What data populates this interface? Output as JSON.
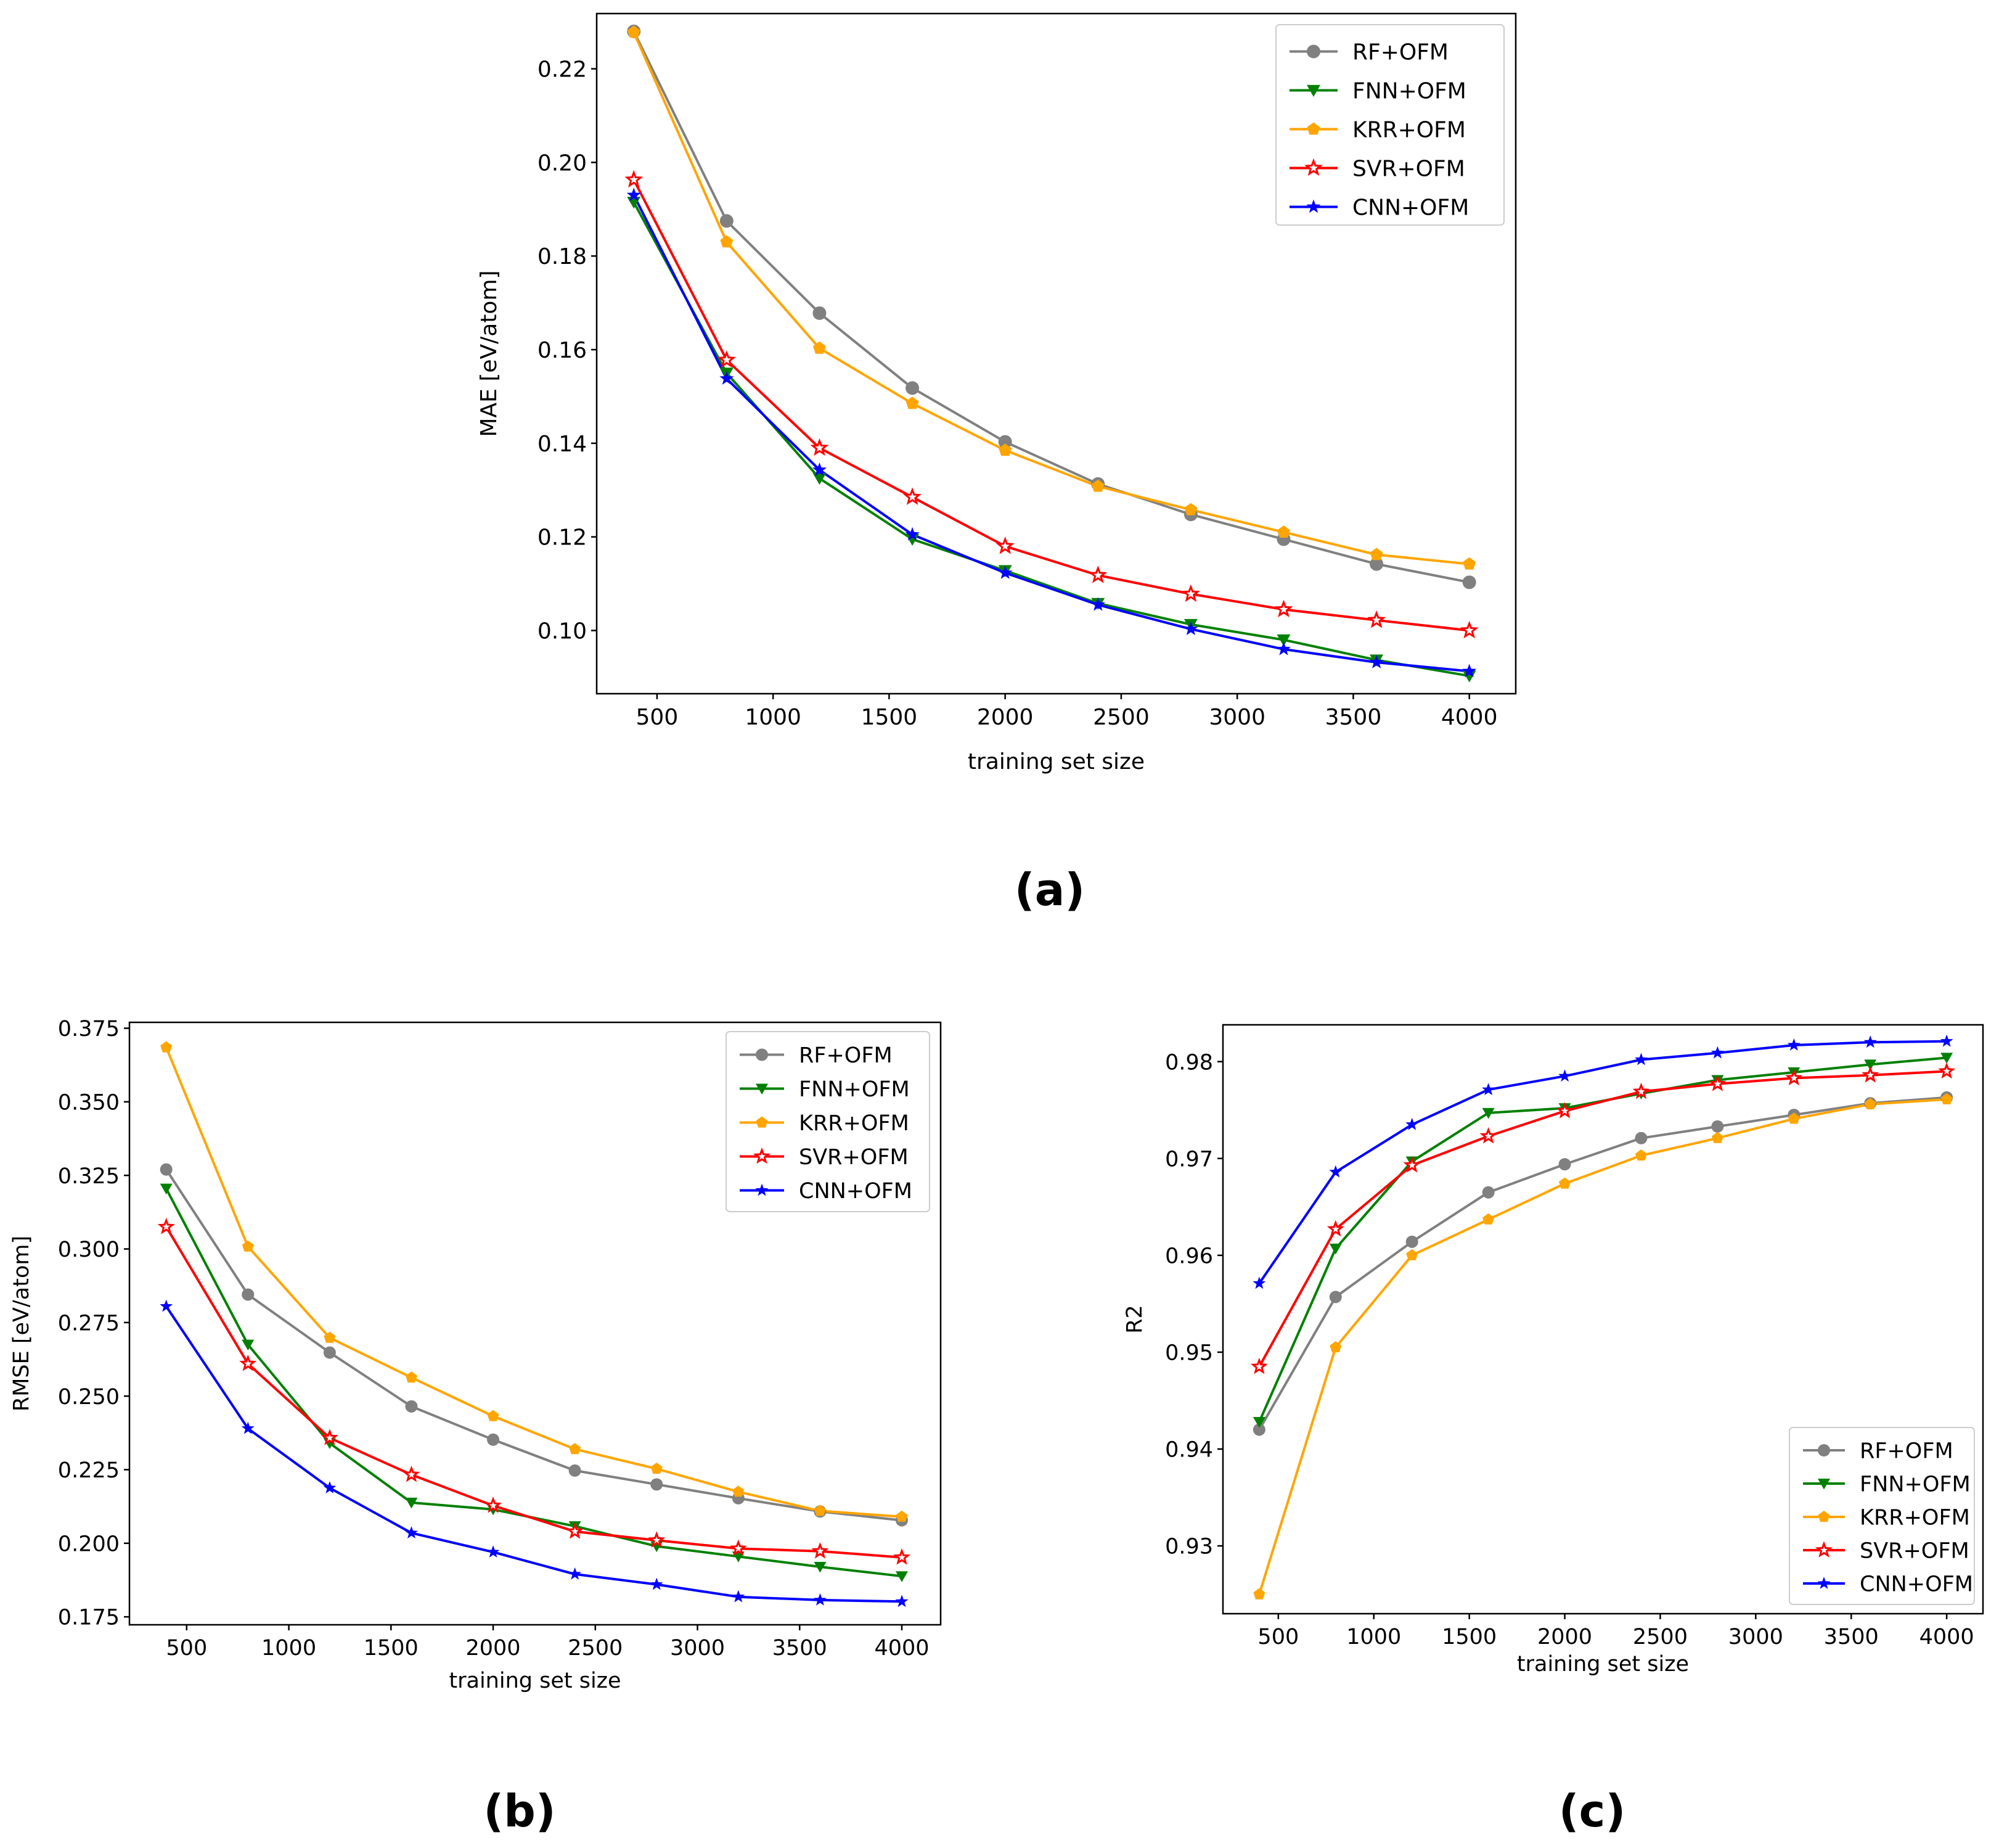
{
  "figure": {
    "captions": [
      "(a)",
      "(b)",
      "(c)"
    ]
  },
  "chart_data": [
    {
      "panel": "a",
      "type": "line",
      "xlabel": "training set size",
      "ylabel": "MAE [eV/atom]",
      "xlim": [
        240,
        4200
      ],
      "ylim": [
        0.0865,
        0.2318
      ],
      "xticks": [
        500,
        1000,
        1500,
        2000,
        2500,
        3000,
        3500,
        4000
      ],
      "xtick_labels": [
        "500",
        "1000",
        "1500",
        "2000",
        "2500",
        "3000",
        "3500",
        "4000"
      ],
      "yticks": [
        0.1,
        0.12,
        0.14,
        0.16,
        0.18,
        0.2,
        0.22
      ],
      "ytick_labels": [
        "0.10",
        "0.12",
        "0.14",
        "0.16",
        "0.18",
        "0.20",
        "0.22"
      ],
      "legend_position": "upper right",
      "x": [
        400,
        800,
        1200,
        1600,
        2000,
        2400,
        2800,
        3200,
        3600,
        4000
      ],
      "series": [
        {
          "name": "RF+OFM",
          "color": "#808080",
          "marker": "circle",
          "values": [
            0.228,
            0.1875,
            0.1678,
            0.1518,
            0.1403,
            0.1313,
            0.1248,
            0.1195,
            0.1142,
            0.1103
          ]
        },
        {
          "name": "FNN+OFM",
          "color": "#008000",
          "marker": "triangle-down",
          "values": [
            0.1915,
            0.155,
            0.1325,
            0.1195,
            0.1128,
            0.1058,
            0.1013,
            0.098,
            0.0937,
            0.0903
          ]
        },
        {
          "name": "KRR+OFM",
          "color": "#FFA500",
          "marker": "pentagon",
          "values": [
            0.2278,
            0.183,
            0.1603,
            0.1485,
            0.1385,
            0.1308,
            0.1258,
            0.121,
            0.1162,
            0.1142
          ]
        },
        {
          "name": "SVR+OFM",
          "color": "#FF0000",
          "marker": "star-open",
          "values": [
            0.1963,
            0.1578,
            0.139,
            0.1285,
            0.118,
            0.1118,
            0.1078,
            0.1045,
            0.1022,
            0.1
          ]
        },
        {
          "name": "CNN+OFM",
          "color": "#0000FF",
          "marker": "star",
          "values": [
            0.193,
            0.1538,
            0.1343,
            0.1205,
            0.1123,
            0.1055,
            0.1003,
            0.096,
            0.0932,
            0.0913
          ]
        }
      ]
    },
    {
      "panel": "b",
      "type": "line",
      "xlabel": "training set size",
      "ylabel": "RMSE [eV/atom]",
      "xlim": [
        220,
        4190
      ],
      "ylim": [
        0.1723,
        0.377
      ],
      "xticks": [
        500,
        1000,
        1500,
        2000,
        2500,
        3000,
        3500,
        4000
      ],
      "xtick_labels": [
        "500",
        "1000",
        "1500",
        "2000",
        "2500",
        "3000",
        "3500",
        "4000"
      ],
      "yticks": [
        0.175,
        0.2,
        0.225,
        0.25,
        0.275,
        0.3,
        0.325,
        0.35,
        0.375
      ],
      "ytick_labels": [
        "0.175",
        "0.200",
        "0.225",
        "0.250",
        "0.275",
        "0.300",
        "0.325",
        "0.350",
        "0.375"
      ],
      "legend_position": "upper right",
      "x": [
        400,
        800,
        1200,
        1600,
        2000,
        2400,
        2800,
        3200,
        3600,
        4000
      ],
      "series": [
        {
          "name": "RF+OFM",
          "color": "#808080",
          "marker": "circle",
          "values": [
            0.327,
            0.2845,
            0.2648,
            0.2465,
            0.2352,
            0.2247,
            0.22,
            0.2153,
            0.2108,
            0.2078
          ]
        },
        {
          "name": "FNN+OFM",
          "color": "#008000",
          "marker": "triangle-down",
          "values": [
            0.3205,
            0.2675,
            0.234,
            0.2138,
            0.2115,
            0.2058,
            0.199,
            0.1955,
            0.192,
            0.1888
          ]
        },
        {
          "name": "KRR+OFM",
          "color": "#FFA500",
          "marker": "pentagon",
          "values": [
            0.3685,
            0.3008,
            0.2698,
            0.2563,
            0.2432,
            0.232,
            0.2253,
            0.2175,
            0.211,
            0.209
          ]
        },
        {
          "name": "SVR+OFM",
          "color": "#FF0000",
          "marker": "star-open",
          "values": [
            0.3075,
            0.261,
            0.2358,
            0.2233,
            0.2128,
            0.204,
            0.201,
            0.1982,
            0.1973,
            0.1952
          ]
        },
        {
          "name": "CNN+OFM",
          "color": "#0000FF",
          "marker": "star",
          "values": [
            0.2805,
            0.239,
            0.2188,
            0.2035,
            0.197,
            0.1895,
            0.186,
            0.1818,
            0.1807,
            0.1802
          ]
        }
      ]
    },
    {
      "panel": "c",
      "type": "line",
      "xlabel": "training set size",
      "ylabel": "R2",
      "xlim": [
        210,
        4190
      ],
      "ylim": [
        0.923,
        0.9838
      ],
      "xticks": [
        500,
        1000,
        1500,
        2000,
        2500,
        3000,
        3500,
        4000
      ],
      "xtick_labels": [
        "500",
        "1000",
        "1500",
        "2000",
        "2500",
        "3000",
        "3500",
        "4000"
      ],
      "yticks": [
        0.93,
        0.94,
        0.95,
        0.96,
        0.97,
        0.98
      ],
      "ytick_labels": [
        "0.93",
        "0.94",
        "0.95",
        "0.96",
        "0.97",
        "0.98"
      ],
      "legend_position": "lower right",
      "x": [
        400,
        800,
        1200,
        1600,
        2000,
        2400,
        2800,
        3200,
        3600,
        4000
      ],
      "series": [
        {
          "name": "RF+OFM",
          "color": "#808080",
          "marker": "circle",
          "values": [
            0.942,
            0.9557,
            0.9614,
            0.9665,
            0.9694,
            0.9721,
            0.9733,
            0.9745,
            0.9757,
            0.9763
          ]
        },
        {
          "name": "FNN+OFM",
          "color": "#008000",
          "marker": "triangle-down",
          "values": [
            0.9428,
            0.9607,
            0.9697,
            0.9747,
            0.9752,
            0.9767,
            0.9781,
            0.9789,
            0.9797,
            0.9804
          ]
        },
        {
          "name": "KRR+OFM",
          "color": "#FFA500",
          "marker": "pentagon",
          "values": [
            0.925,
            0.9505,
            0.96,
            0.9637,
            0.9674,
            0.9703,
            0.9721,
            0.9741,
            0.9756,
            0.9761
          ]
        },
        {
          "name": "SVR+OFM",
          "color": "#FF0000",
          "marker": "star-open",
          "values": [
            0.9485,
            0.9627,
            0.9693,
            0.9723,
            0.9749,
            0.9769,
            0.9777,
            0.9783,
            0.9786,
            0.979
          ]
        },
        {
          "name": "CNN+OFM",
          "color": "#0000FF",
          "marker": "star",
          "values": [
            0.9571,
            0.9686,
            0.9735,
            0.9771,
            0.9785,
            0.9802,
            0.9809,
            0.9817,
            0.982,
            0.9821
          ]
        }
      ]
    }
  ]
}
